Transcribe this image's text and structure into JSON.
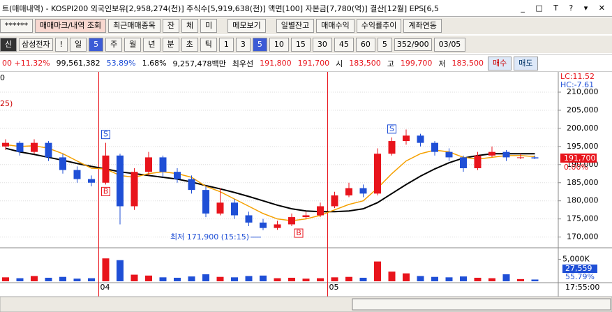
{
  "title_bar": {
    "text": "트(매매내역) - KOSPI200 외국인보유[2,958,274(천)] 주식수[5,919,638(천)] 액면[100] 자본금[7,780(억)] 결산[12월] EPS[6,5"
  },
  "toolbar": {
    "items": [
      "******",
      "매매마크/내역 조회",
      "최근매매종목",
      "잔",
      "체",
      "미",
      "메모보기",
      "일별잔고",
      "매매수익",
      "수익률추이",
      "계좌연동"
    ]
  },
  "symbol_bar": {
    "items": [
      "신",
      "삼성전자",
      "!",
      "일",
      "5",
      "주",
      "월",
      "년",
      "분",
      "초",
      "틱",
      "1",
      "3",
      "5",
      "10",
      "15",
      "30",
      "45",
      "60",
      "5",
      "352/900",
      "03/05"
    ]
  },
  "quote_bar": {
    "items": [
      "00 +11.32%",
      "99,561,382",
      "53.89%",
      "1.68%",
      "9,257,478백만",
      "최우선",
      "191,800",
      "191,700",
      "시",
      "183,500",
      "고",
      "199,700",
      "저",
      "183,500",
      "매수",
      "매도"
    ]
  },
  "chart_data": {
    "type": "candlestick",
    "categories": [
      null,
      null,
      null,
      null,
      null,
      null,
      null,
      "04",
      null,
      null,
      null,
      null,
      null,
      null,
      null,
      null,
      null,
      null,
      null,
      null,
      null,
      null,
      null,
      "05",
      null,
      null,
      null,
      null,
      null,
      null,
      null,
      null,
      null,
      null,
      null,
      null,
      null,
      null
    ],
    "open": [
      195000,
      196000,
      193500,
      196000,
      192000,
      188500,
      186000,
      185000,
      192500,
      178500,
      188000,
      192000,
      188000,
      186000,
      183000,
      176500,
      179500,
      176000,
      174000,
      172500,
      173500,
      175500,
      176000,
      178500,
      181500,
      183500,
      182000,
      193000,
      196500,
      198000,
      196000,
      193500,
      192000,
      189000,
      192500,
      193500,
      192000,
      192000
    ],
    "high": [
      197000,
      196500,
      197000,
      196500,
      193000,
      189500,
      187000,
      196000,
      193000,
      189000,
      193500,
      192500,
      189000,
      187000,
      184000,
      183500,
      180500,
      177000,
      175000,
      174500,
      176500,
      177000,
      179500,
      182500,
      185000,
      184500,
      194500,
      197500,
      199700,
      198500,
      196500,
      194500,
      192500,
      193500,
      195000,
      194000,
      193000,
      192500
    ],
    "low": [
      194000,
      192500,
      193000,
      191000,
      187500,
      185000,
      184000,
      184500,
      173500,
      177500,
      187000,
      186500,
      185000,
      182000,
      175500,
      176000,
      175000,
      173000,
      171900,
      172000,
      173000,
      175000,
      175500,
      178000,
      181000,
      181000,
      181500,
      192500,
      195500,
      195000,
      192500,
      191000,
      188000,
      188500,
      192000,
      191000,
      191500,
      191500
    ],
    "close": [
      196000,
      193500,
      196000,
      192000,
      188500,
      186000,
      185000,
      192500,
      178500,
      188000,
      192000,
      188000,
      186000,
      183000,
      176500,
      179500,
      176000,
      174000,
      172500,
      173500,
      175500,
      176000,
      178500,
      181500,
      183500,
      182000,
      193000,
      196500,
      198000,
      196000,
      193500,
      192000,
      189000,
      192500,
      193500,
      192000,
      192000,
      191700
    ],
    "up_color": "#e8141c",
    "down_color": "#1f4fd6",
    "series": [
      {
        "color": "#000000",
        "values": [
          194500,
          193500,
          192800,
          192000,
          191200,
          190300,
          189500,
          188800,
          188000,
          187500,
          187000,
          186500,
          186000,
          185200,
          184200,
          183300,
          182300,
          181200,
          180000,
          178800,
          177800,
          177200,
          177000,
          177000,
          177200,
          177800,
          179500,
          182000,
          184500,
          186800,
          188800,
          190500,
          191800,
          192500,
          193000,
          193000,
          193000,
          193000
        ]
      },
      {
        "color": "#f5a000",
        "values": [
          195500,
          195000,
          195200,
          194500,
          193000,
          191000,
          189000,
          188800,
          187000,
          186500,
          187500,
          188000,
          187500,
          186500,
          184000,
          182500,
          180500,
          178500,
          176500,
          175000,
          174500,
          175000,
          176000,
          177500,
          179000,
          180000,
          183500,
          187500,
          191000,
          193000,
          194000,
          193500,
          192000,
          191500,
          192000,
          192500,
          192500,
          192200
        ]
      }
    ],
    "ylim": [
      168000,
      215200
    ],
    "yticks": [
      {
        "value": 170000,
        "label": "170,000"
      },
      {
        "value": 175000,
        "label": "175,000"
      },
      {
        "value": 180000,
        "label": "180,000"
      },
      {
        "value": 185000,
        "label": "185,000"
      },
      {
        "value": 190000,
        "label": "190,000"
      },
      {
        "value": 195000,
        "label": "195,000"
      },
      {
        "value": 200000,
        "label": "200,000"
      },
      {
        "value": 205000,
        "label": "205,000"
      },
      {
        "value": 210000,
        "label": "210,000"
      }
    ],
    "lc_label": "LC:11.52",
    "hc_label": "HC:-7.61",
    "legend_fragments": [
      "0",
      "25)"
    ],
    "last_price_label": "191,700",
    "change_label": "0.00%",
    "annotation": "최저 171,900 (15:15)",
    "trade_marks": [
      {
        "label": "B",
        "index": 7
      },
      {
        "label": "S",
        "index": 7
      },
      {
        "label": "S",
        "index": 27
      },
      {
        "label": "B",
        "index": 20
      }
    ],
    "volume": {
      "values": [
        900,
        700,
        1200,
        800,
        1000,
        600,
        700,
        5200,
        4800,
        1500,
        1300,
        900,
        800,
        1100,
        1600,
        1000,
        900,
        1200,
        1300,
        700,
        800,
        600,
        700,
        900,
        1000,
        800,
        4500,
        2200,
        1800,
        1200,
        1000,
        900,
        1100,
        800,
        700,
        1600,
        500,
        400
      ],
      "ylim": [
        0,
        6500
      ],
      "yticks": [
        {
          "value": 5000,
          "label": "5,000K"
        }
      ],
      "last_label": "27,559",
      "pct_label": "55.79%"
    },
    "time_label": "17:55:00"
  }
}
